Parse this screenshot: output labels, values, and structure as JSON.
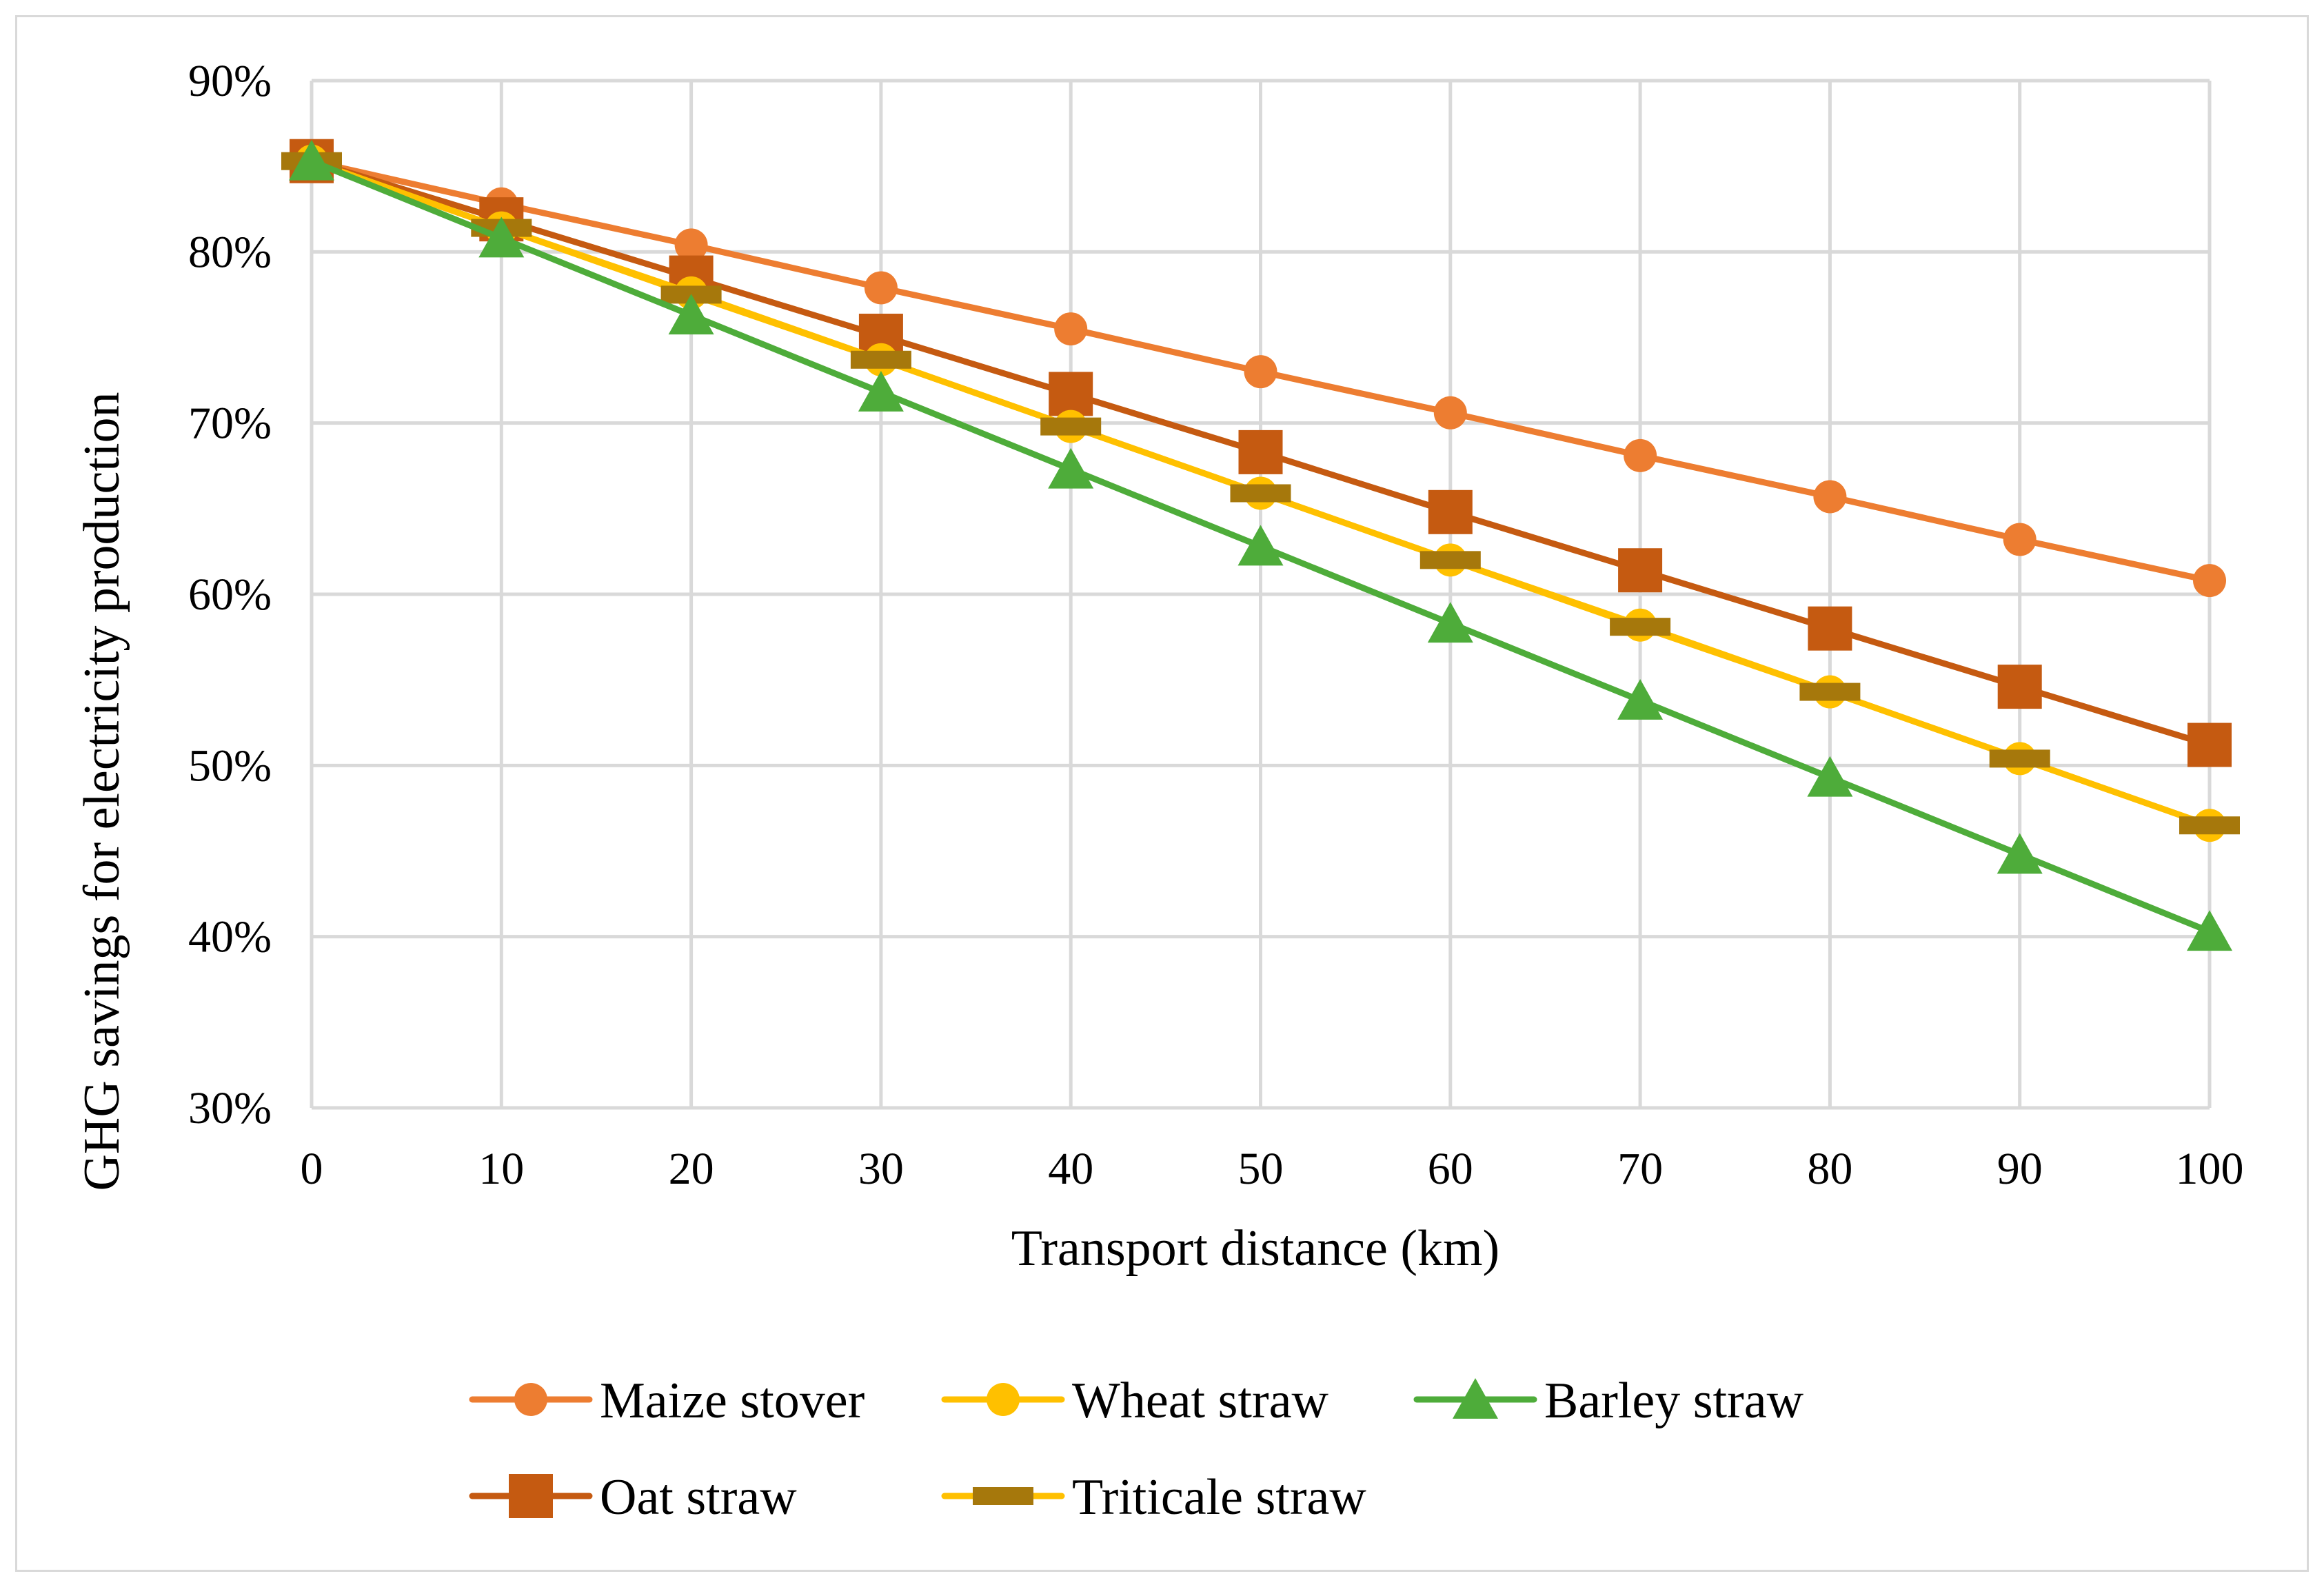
{
  "chart_data": {
    "type": "line",
    "title": "",
    "xlabel": "Transport distance (km)",
    "ylabel": "GHG savings for electricity production",
    "x": [
      0,
      10,
      20,
      30,
      40,
      50,
      60,
      70,
      80,
      90,
      100
    ],
    "xticks": [
      "0",
      "10",
      "20",
      "30",
      "40",
      "50",
      "60",
      "70",
      "80",
      "90",
      "100"
    ],
    "ylim": [
      30,
      90
    ],
    "yticks": [
      {
        "value": 30,
        "label": "30%"
      },
      {
        "value": 40,
        "label": "40%"
      },
      {
        "value": 50,
        "label": "50%"
      },
      {
        "value": 60,
        "label": "60%"
      },
      {
        "value": 70,
        "label": "70%"
      },
      {
        "value": 80,
        "label": "80%"
      },
      {
        "value": 90,
        "label": "90%"
      }
    ],
    "grid": true,
    "legend_position": "bottom",
    "series": [
      {
        "name": "Maize stover",
        "color": "#ED7D31",
        "marker": "circle",
        "values": [
          85.3,
          82.8,
          80.4,
          77.9,
          75.5,
          73.0,
          70.6,
          68.1,
          65.7,
          63.2,
          60.8
        ]
      },
      {
        "name": "Wheat straw",
        "color": "#FFC000",
        "marker": "circle",
        "values": [
          85.3,
          81.4,
          77.6,
          73.7,
          69.8,
          65.9,
          62.0,
          58.2,
          54.3,
          50.4,
          46.5
        ]
      },
      {
        "name": "Barley straw",
        "color": "#4EAC3A",
        "marker": "triangle",
        "values": [
          85.3,
          80.8,
          76.3,
          71.8,
          67.3,
          62.8,
          58.3,
          53.8,
          49.3,
          44.8,
          40.3
        ]
      },
      {
        "name": "Oat straw",
        "color": "#C55A11",
        "marker": "square",
        "values": [
          85.3,
          81.9,
          78.5,
          75.1,
          71.7,
          68.3,
          64.8,
          61.4,
          58.0,
          54.6,
          51.2
        ]
      },
      {
        "name": "Triticale straw",
        "color": "#FFC000",
        "marker": "dash",
        "marker_color": "#A6780C",
        "values": [
          85.3,
          81.4,
          77.5,
          73.7,
          69.8,
          65.9,
          62.0,
          58.1,
          54.3,
          50.4,
          46.5
        ]
      }
    ]
  }
}
